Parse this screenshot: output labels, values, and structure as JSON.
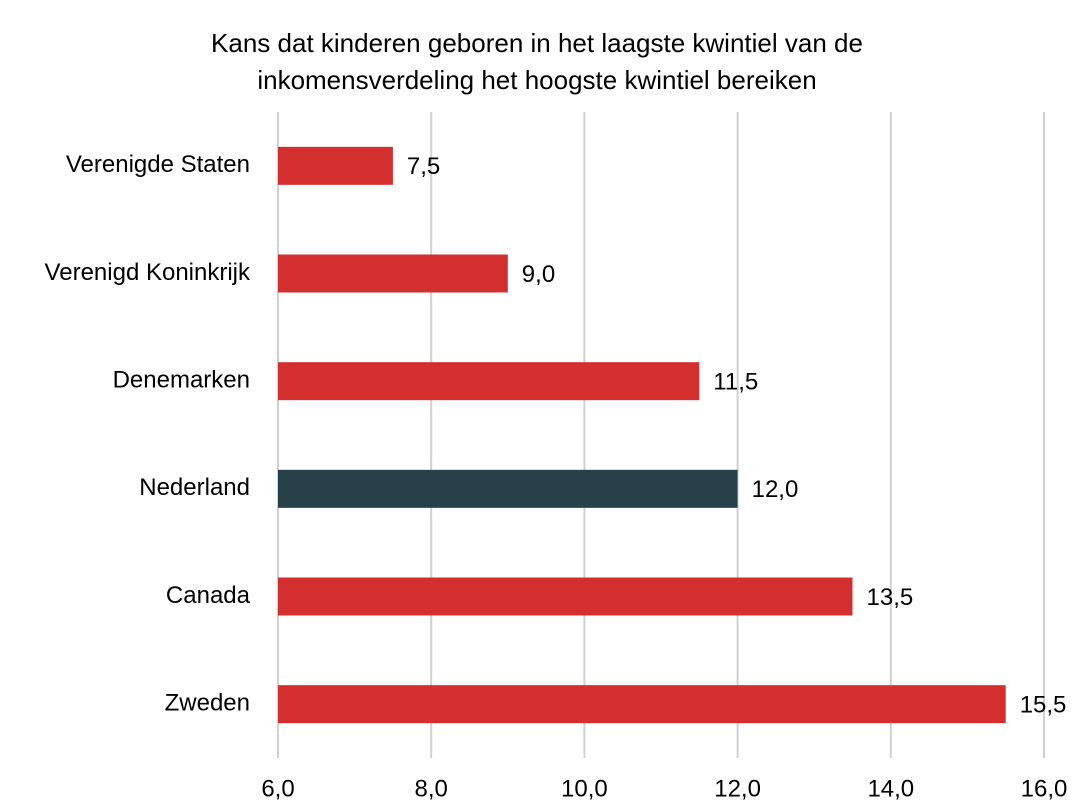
{
  "chart_data": {
    "type": "hbar",
    "title": [
      "Kans dat kinderen geboren in het laagste kwintiel van de",
      "inkomensverdeling het hoogste kwintiel bereiken"
    ],
    "categories": [
      "Verenigde Staten",
      "Verenigd Koninkrijk",
      "Denemarken",
      "Nederland",
      "Canada",
      "Zweden"
    ],
    "values": [
      7.5,
      9.0,
      11.5,
      12.0,
      13.5,
      15.5
    ],
    "value_labels": [
      "7,5",
      "9,0",
      "11,5",
      "12,0",
      "13,5",
      "15,5"
    ],
    "colors": [
      "#d32f2f",
      "#d32f2f",
      "#d32f2f",
      "#27404a",
      "#d32f2f",
      "#d32f2f"
    ],
    "xlim": [
      6,
      16
    ],
    "xticks": [
      {
        "value": 6,
        "label": "6,0"
      },
      {
        "value": 8,
        "label": "8,0"
      },
      {
        "value": 10,
        "label": "10,0"
      },
      {
        "value": 12,
        "label": "12,0"
      },
      {
        "value": 14,
        "label": "14,0"
      },
      {
        "value": 16,
        "label": "16,0"
      }
    ],
    "grid": true
  }
}
